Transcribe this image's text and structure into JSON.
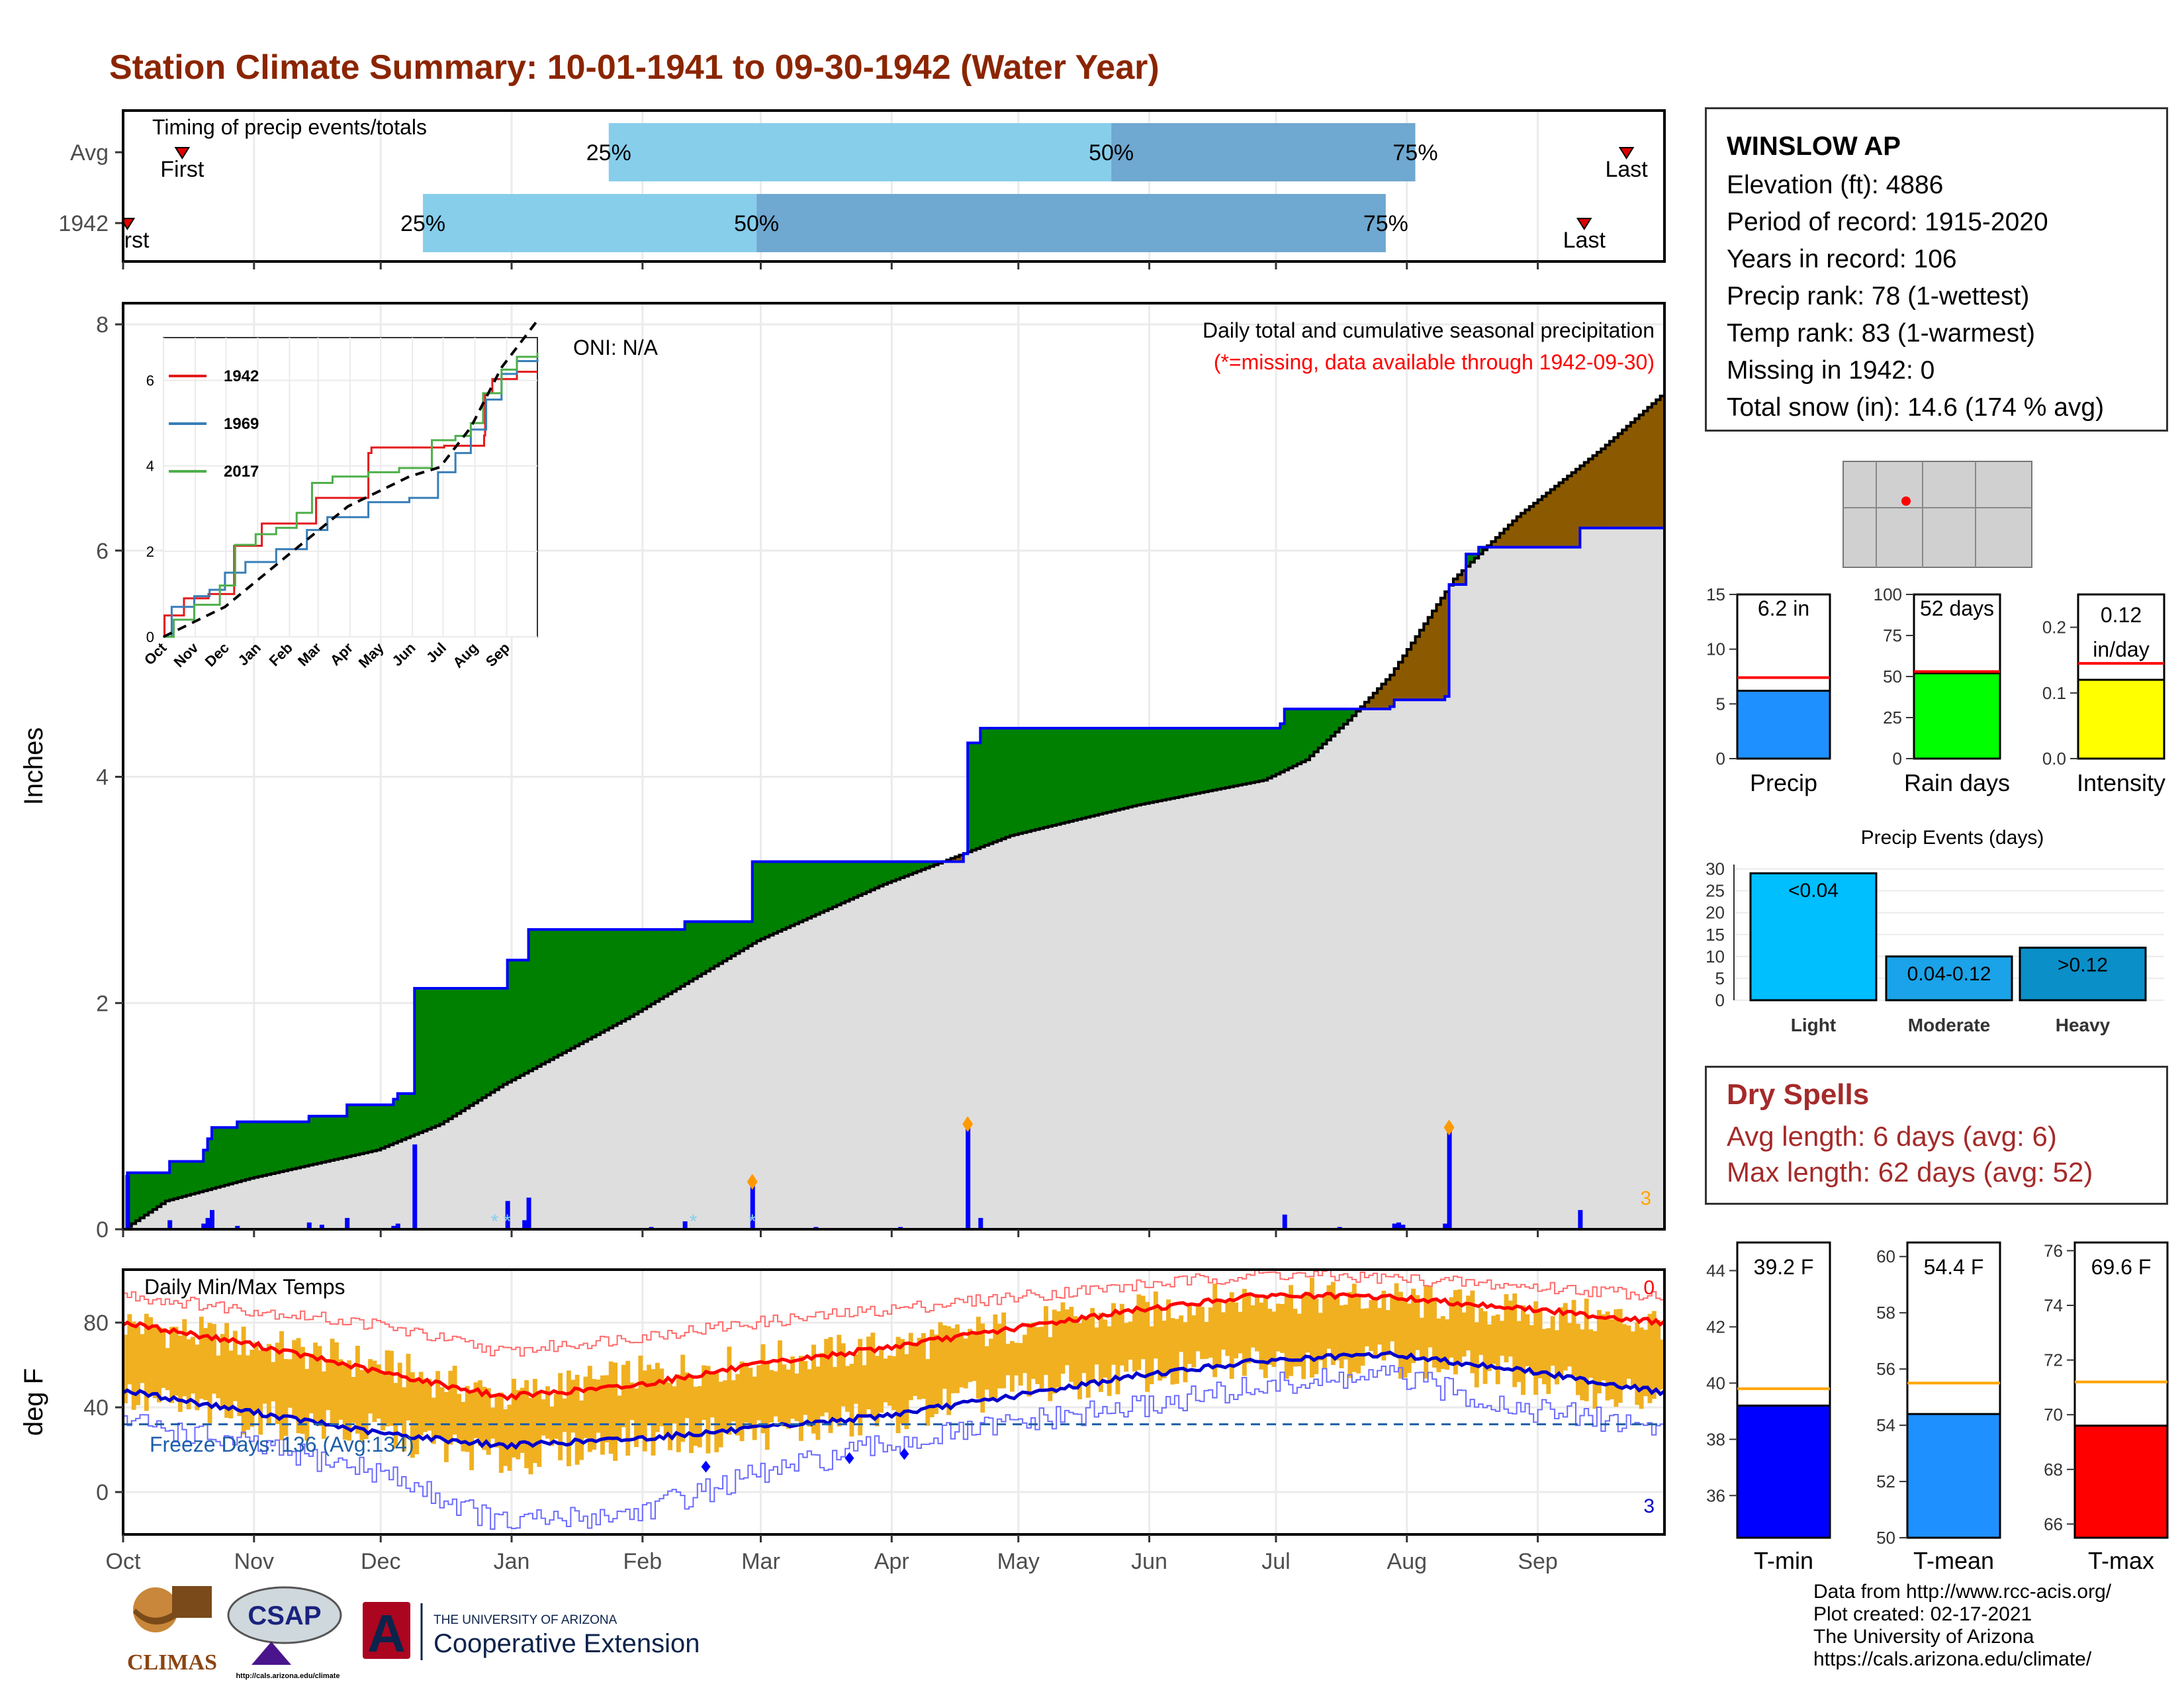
{
  "title": "Station Climate Summary: 10-01-1941 to 09-30-1942 (Water Year)",
  "station": {
    "name": "WINSLOW AP",
    "lines": [
      "Elevation (ft): 4886",
      "Period of record: 1915-2020",
      "Years in record: 106",
      "Precip rank: 78 (1-wettest)",
      "Temp rank: 83 (1-warmest)",
      "Missing in 1942: 0",
      "Total snow (in): 14.6 (174 % avg)"
    ]
  },
  "dry_spells": {
    "title": "Dry Spells",
    "avg": "Avg length: 6 days (avg: 6)",
    "max": "Max length: 62 days (avg: 52)"
  },
  "credits": [
    "Data from http://www.rcc-acis.org/",
    "Plot created: 02-17-2021",
    "The University of Arizona",
    "https://cals.arizona.edu/climate/"
  ],
  "logos": {
    "climas": "CLIMAS",
    "csap": "CSAP",
    "csap_url": "http://cals.arizona.edu/climate",
    "ua_small": "THE UNIVERSITY OF ARIZONA",
    "ua_big": "Cooperative Extension",
    "ua_letter": "A"
  },
  "colors": {
    "title": "#8b2500",
    "q1": "#87ceeb",
    "q2": "#6fa8d0",
    "green": "#008000",
    "brown": "#8b5a00",
    "grey": "#dedede",
    "blue": "#0000ff",
    "red": "#ff0000",
    "orange": "#f0b020"
  },
  "chart_data": [
    {
      "type": "timing",
      "title": "Timing of precip events/totals",
      "x_axis": "day of water year (0 = Oct 1)",
      "xlim": [
        0,
        365
      ],
      "rows": [
        {
          "label": "Avg",
          "first_day": 14,
          "q25": 115,
          "q50": 234,
          "q75": 306,
          "last_day": 356,
          "first_label": "First",
          "last_label": "Last",
          "p25": "25%",
          "p50": "50%",
          "p75": "75%"
        },
        {
          "label": "1942",
          "first_day": 1,
          "q25": 71,
          "q50": 150,
          "q75": 299,
          "last_day": 346,
          "first_label": "First",
          "last_label": "Last",
          "p25": "25%",
          "p50": "50%",
          "p75": "75%"
        }
      ]
    },
    {
      "type": "area",
      "title": "Daily total and cumulative seasonal precipitation",
      "subtitle": "(*=missing, data available through 1942-09-30)",
      "annotation": "ONI: N/A",
      "corner_value": "3",
      "ylabel": "Inches",
      "ylim": [
        0,
        8
      ],
      "yticks": [
        0,
        2,
        4,
        6,
        8
      ],
      "x_axis": "day of water year",
      "cum_1942": [
        [
          0,
          0
        ],
        [
          1,
          0.5
        ],
        [
          10,
          0.5
        ],
        [
          11,
          0.6
        ],
        [
          18,
          0.6
        ],
        [
          19,
          0.7
        ],
        [
          20,
          0.8
        ],
        [
          21,
          0.9
        ],
        [
          26,
          0.9
        ],
        [
          27,
          0.95
        ],
        [
          43,
          0.95
        ],
        [
          44,
          1.0
        ],
        [
          52,
          1.0
        ],
        [
          53,
          1.1
        ],
        [
          64,
          1.15
        ],
        [
          65,
          1.2
        ],
        [
          68,
          1.2
        ],
        [
          69,
          2.13
        ],
        [
          90,
          2.13
        ],
        [
          91,
          2.38
        ],
        [
          95,
          2.38
        ],
        [
          96,
          2.65
        ],
        [
          132,
          2.65
        ],
        [
          133,
          2.72
        ],
        [
          148,
          2.72
        ],
        [
          149,
          3.25
        ],
        [
          199,
          3.32
        ],
        [
          200,
          4.3
        ],
        [
          203,
          4.43
        ],
        [
          274,
          4.47
        ],
        [
          275,
          4.6
        ],
        [
          300,
          4.62
        ],
        [
          301,
          4.68
        ],
        [
          313,
          4.71
        ],
        [
          314,
          5.7
        ],
        [
          318,
          5.97
        ],
        [
          321,
          6.03
        ],
        [
          345,
          6.2
        ],
        [
          365,
          6.2
        ]
      ],
      "cum_avg": [
        [
          0,
          0
        ],
        [
          10,
          0.25
        ],
        [
          30,
          0.45
        ],
        [
          60,
          0.7
        ],
        [
          75,
          0.93
        ],
        [
          90,
          1.28
        ],
        [
          120,
          1.88
        ],
        [
          150,
          2.55
        ],
        [
          180,
          3.05
        ],
        [
          210,
          3.48
        ],
        [
          240,
          3.75
        ],
        [
          270,
          3.97
        ],
        [
          280,
          4.15
        ],
        [
          290,
          4.5
        ],
        [
          300,
          4.9
        ],
        [
          315,
          5.75
        ],
        [
          330,
          6.3
        ],
        [
          350,
          6.9
        ],
        [
          365,
          7.4
        ]
      ],
      "daily": [
        [
          1,
          0.48
        ],
        [
          11,
          0.08
        ],
        [
          19,
          0.05
        ],
        [
          20,
          0.1
        ],
        [
          21,
          0.17
        ],
        [
          27,
          0.03
        ],
        [
          44,
          0.06
        ],
        [
          47,
          0.04
        ],
        [
          53,
          0.1
        ],
        [
          64,
          0.03
        ],
        [
          65,
          0.05
        ],
        [
          69,
          0.75
        ],
        [
          91,
          0.25
        ],
        [
          95,
          0.08
        ],
        [
          96,
          0.28
        ],
        [
          125,
          0.02
        ],
        [
          133,
          0.07
        ],
        [
          149,
          0.42
        ],
        [
          164,
          0.02
        ],
        [
          184,
          0.02
        ],
        [
          200,
          0.93
        ],
        [
          203,
          0.1
        ],
        [
          275,
          0.13
        ],
        [
          288,
          0.02
        ],
        [
          301,
          0.05
        ],
        [
          302,
          0.06
        ],
        [
          303,
          0.04
        ],
        [
          313,
          0.05
        ],
        [
          314,
          0.9
        ],
        [
          345,
          0.17
        ]
      ],
      "daily_points": [
        200,
        314,
        149
      ],
      "snow_marks": [
        88,
        91,
        135,
        149
      ],
      "inset": {
        "type": "line",
        "ylim": [
          0,
          7
        ],
        "yticks": [
          0,
          2,
          4,
          6
        ],
        "categories": [
          "Oct",
          "Nov",
          "Dec",
          "Jan",
          "Feb",
          "Mar",
          "Apr",
          "May",
          "Jun",
          "Jul",
          "Aug",
          "Sep"
        ],
        "series": [
          {
            "name": "1942",
            "color": "#e41a1c",
            "values": [
              [
                0,
                0
              ],
              [
                1,
                0.5
              ],
              [
                20,
                0.9
              ],
              [
                44,
                1.0
              ],
              [
                69,
                2.13
              ],
              [
                96,
                2.65
              ],
              [
                149,
                3.25
              ],
              [
                200,
                4.3
              ],
              [
                203,
                4.43
              ],
              [
                274,
                4.47
              ],
              [
                313,
                4.71
              ],
              [
                314,
                5.7
              ],
              [
                321,
                6.03
              ],
              [
                345,
                6.2
              ],
              [
                365,
                6.2
              ]
            ]
          },
          {
            "name": "1969",
            "color": "#377eb8",
            "values": [
              [
                0,
                0
              ],
              [
                8,
                0.7
              ],
              [
                30,
                0.95
              ],
              [
                45,
                1.1
              ],
              [
                60,
                1.5
              ],
              [
                80,
                1.75
              ],
              [
                110,
                2.05
              ],
              [
                140,
                2.5
              ],
              [
                160,
                2.8
              ],
              [
                200,
                3.15
              ],
              [
                240,
                3.25
              ],
              [
                268,
                3.85
              ],
              [
                285,
                4.3
              ],
              [
                300,
                4.85
              ],
              [
                315,
                5.55
              ],
              [
                330,
                6.15
              ],
              [
                345,
                6.45
              ],
              [
                365,
                6.5
              ]
            ]
          },
          {
            "name": "2017",
            "color": "#4daf4a",
            "values": [
              [
                0,
                0
              ],
              [
                10,
                0.4
              ],
              [
                30,
                0.75
              ],
              [
                55,
                1.2
              ],
              [
                70,
                2.15
              ],
              [
                90,
                2.4
              ],
              [
                110,
                2.55
              ],
              [
                130,
                2.9
              ],
              [
                145,
                3.6
              ],
              [
                165,
                3.75
              ],
              [
                200,
                3.85
              ],
              [
                230,
                3.95
              ],
              [
                262,
                4.6
              ],
              [
                285,
                4.7
              ],
              [
                300,
                5.0
              ],
              [
                312,
                5.7
              ],
              [
                330,
                6.25
              ],
              [
                345,
                6.55
              ],
              [
                365,
                6.65
              ]
            ]
          },
          {
            "name": "avg",
            "color": "#000000",
            "values": [
              [
                0,
                0
              ],
              [
                60,
                0.7
              ],
              [
                120,
                1.88
              ],
              [
                180,
                3.05
              ],
              [
                240,
                3.75
              ],
              [
                270,
                3.97
              ],
              [
                300,
                4.9
              ],
              [
                330,
                6.3
              ],
              [
                365,
                7.4
              ]
            ]
          }
        ]
      }
    },
    {
      "type": "bar",
      "title": "Precip",
      "label": "6.2 in",
      "value": 6.2,
      "avg": 7.4,
      "ylim": [
        0,
        15
      ],
      "yticks": [
        0,
        5,
        10,
        15
      ],
      "color": "#1e90ff"
    },
    {
      "type": "bar",
      "title": "Rain days",
      "label": "52 days",
      "value": 52,
      "avg": 53,
      "ylim": [
        0,
        100
      ],
      "yticks": [
        0,
        25,
        50,
        75,
        100
      ],
      "color": "#00ff00"
    },
    {
      "type": "bar",
      "title": "Intensity",
      "label": "0.12",
      "label2": "in/day",
      "value": 0.12,
      "avg": 0.145,
      "ylim": [
        0,
        0.25
      ],
      "yticks": [
        0.0,
        0.1,
        0.2
      ],
      "color": "#ffff00"
    },
    {
      "type": "bar",
      "title": "Precip Events (days)",
      "categories": [
        "Light",
        "Moderate",
        "Heavy"
      ],
      "values": [
        29,
        10,
        12
      ],
      "labels": [
        "<0.04",
        "0.04-0.12",
        ">0.12"
      ],
      "colors": [
        "#00bfff",
        "#1aa3e8",
        "#0a8fc8"
      ],
      "ylim": [
        0,
        31
      ],
      "yticks": [
        0,
        5,
        10,
        15,
        20,
        25,
        30
      ]
    },
    {
      "type": "line",
      "title": "Daily Min/Max Temps",
      "ylabel": "deg F",
      "ylim": [
        -20,
        105
      ],
      "yticks": [
        0,
        40,
        80
      ],
      "months": [
        "Oct",
        "Nov",
        "Dec",
        "Jan",
        "Feb",
        "Mar",
        "Apr",
        "May",
        "Jun",
        "Jul",
        "Aug",
        "Sep"
      ],
      "corner_top": "0",
      "corner_bottom": "3",
      "freeze_label": "Freeze Days: 136 (Avg:134)",
      "freeze_line": 32,
      "avg_max": [
        [
          0,
          80
        ],
        [
          30,
          70
        ],
        [
          60,
          57
        ],
        [
          90,
          45
        ],
        [
          120,
          50
        ],
        [
          150,
          60
        ],
        [
          180,
          68
        ],
        [
          210,
          77
        ],
        [
          240,
          86
        ],
        [
          270,
          93
        ],
        [
          300,
          92
        ],
        [
          330,
          87
        ],
        [
          365,
          80
        ]
      ],
      "avg_min": [
        [
          0,
          48
        ],
        [
          30,
          38
        ],
        [
          60,
          28
        ],
        [
          90,
          22
        ],
        [
          120,
          25
        ],
        [
          150,
          30
        ],
        [
          180,
          36
        ],
        [
          210,
          45
        ],
        [
          240,
          55
        ],
        [
          270,
          62
        ],
        [
          300,
          65
        ],
        [
          330,
          58
        ],
        [
          365,
          47
        ]
      ],
      "record_high": [
        [
          0,
          93
        ],
        [
          60,
          79
        ],
        [
          90,
          66
        ],
        [
          150,
          80
        ],
        [
          210,
          92
        ],
        [
          270,
          103
        ],
        [
          300,
          101
        ],
        [
          365,
          93
        ]
      ],
      "record_low": [
        [
          0,
          34
        ],
        [
          30,
          22
        ],
        [
          60,
          10
        ],
        [
          90,
          -15
        ],
        [
          120,
          -10
        ],
        [
          150,
          8
        ],
        [
          180,
          22
        ],
        [
          210,
          32
        ],
        [
          240,
          40
        ],
        [
          270,
          50
        ],
        [
          300,
          55
        ],
        [
          330,
          40
        ],
        [
          365,
          30
        ]
      ],
      "obs_max": [
        [
          0,
          80
        ],
        [
          30,
          70
        ],
        [
          60,
          60
        ],
        [
          90,
          45
        ],
        [
          120,
          55
        ],
        [
          150,
          62
        ],
        [
          180,
          68
        ],
        [
          210,
          78
        ],
        [
          240,
          85
        ],
        [
          270,
          93
        ],
        [
          300,
          91
        ],
        [
          330,
          85
        ],
        [
          365,
          80
        ]
      ],
      "obs_min": [
        [
          0,
          45
        ],
        [
          30,
          35
        ],
        [
          60,
          28
        ],
        [
          90,
          15
        ],
        [
          120,
          25
        ],
        [
          150,
          28
        ],
        [
          180,
          35
        ],
        [
          210,
          48
        ],
        [
          240,
          55
        ],
        [
          270,
          62
        ],
        [
          300,
          63
        ],
        [
          330,
          55
        ],
        [
          365,
          42
        ]
      ],
      "record_low_points": [
        [
          138,
          12
        ],
        [
          172,
          16
        ],
        [
          185,
          18
        ]
      ]
    },
    {
      "type": "bar",
      "title": "T-min",
      "label": "39.2 F",
      "value": 39.2,
      "avg": 39.8,
      "ylim": [
        34.5,
        45.0
      ],
      "yticks": [
        36,
        38,
        40,
        42,
        44
      ],
      "color": "#0000ff"
    },
    {
      "type": "bar",
      "title": "T-mean",
      "label": "54.4 F",
      "value": 54.4,
      "avg": 55.5,
      "ylim": [
        50,
        60.5
      ],
      "yticks": [
        50,
        52,
        54,
        56,
        58,
        60
      ],
      "color": "#1e90ff"
    },
    {
      "type": "bar",
      "title": "T-max",
      "label": "69.6 F",
      "value": 69.6,
      "avg": 71.2,
      "ylim": [
        65.5,
        76.3
      ],
      "yticks": [
        66,
        68,
        70,
        72,
        74,
        76
      ],
      "color": "#ff0000"
    }
  ]
}
